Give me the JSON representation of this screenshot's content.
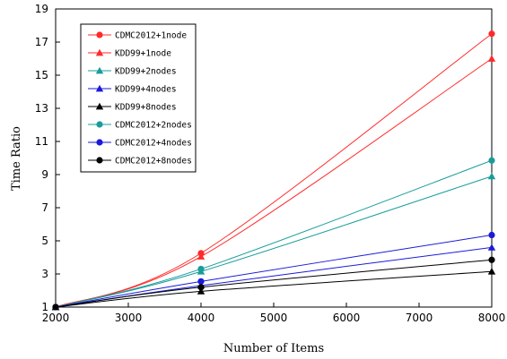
{
  "chart_data": {
    "type": "line",
    "title": "",
    "xlabel": "Number of Items",
    "ylabel": "Time Ratio",
    "x": [
      2000,
      4000,
      8000
    ],
    "xlim": [
      2000,
      8000
    ],
    "ylim": [
      1,
      19
    ],
    "xticks": [
      2000,
      3000,
      4000,
      5000,
      6000,
      7000,
      8000
    ],
    "yticks": [
      1,
      3,
      5,
      7,
      9,
      11,
      13,
      15,
      17,
      19
    ],
    "grid": false,
    "legend_position": "top-left",
    "series": [
      {
        "name": "CDMC2012+1node",
        "values": [
          1,
          4.25,
          17.5
        ],
        "color": "#ff2a2a",
        "marker": "circle"
      },
      {
        "name": "KDD99+1node",
        "values": [
          1,
          4.05,
          16.0
        ],
        "color": "#ff2a2a",
        "marker": "triangle"
      },
      {
        "name": "KDD99+2nodes",
        "values": [
          1,
          3.15,
          8.9
        ],
        "color": "#199c9c",
        "marker": "triangle"
      },
      {
        "name": "KDD99+4nodes",
        "values": [
          1,
          2.3,
          4.6
        ],
        "color": "#1a1ad8",
        "marker": "triangle"
      },
      {
        "name": "KDD99+8nodes",
        "values": [
          1,
          1.95,
          3.15
        ],
        "color": "#000000",
        "marker": "triangle"
      },
      {
        "name": "CDMC2012+2nodes",
        "values": [
          1,
          3.3,
          9.85
        ],
        "color": "#199c9c",
        "marker": "circle"
      },
      {
        "name": "CDMC2012+4nodes",
        "values": [
          1,
          2.55,
          5.35
        ],
        "color": "#1a1ad8",
        "marker": "circle"
      },
      {
        "name": "CDMC2012+8nodes",
        "values": [
          1,
          2.2,
          3.85
        ],
        "color": "#000000",
        "marker": "circle"
      }
    ]
  }
}
